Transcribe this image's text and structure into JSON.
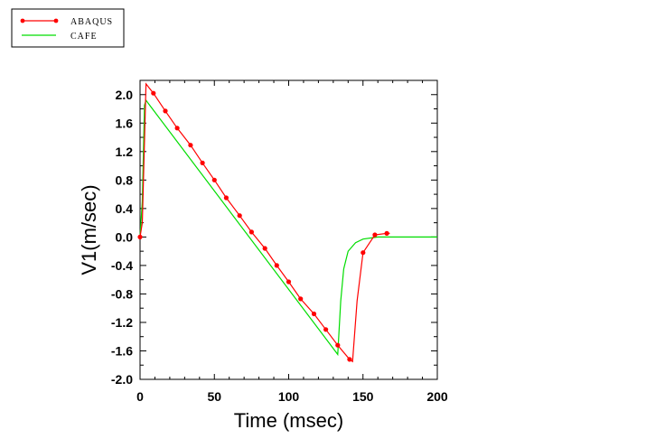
{
  "chart_data": {
    "type": "line",
    "xlabel": "Time (msec)",
    "ylabel": "V1(m/sec)",
    "xlim": [
      0,
      200
    ],
    "ylim": [
      -2.0,
      2.2
    ],
    "x_ticks": [
      0,
      50,
      100,
      150,
      200
    ],
    "x_tick_labels": [
      "0",
      "50",
      "100",
      "150",
      "200"
    ],
    "y_ticks": [
      -2.0,
      -1.6,
      -1.2,
      -0.8,
      -0.4,
      0.0,
      0.4,
      0.8,
      1.2,
      1.6,
      2.0
    ],
    "y_tick_labels": [
      "-2.0",
      "-1.6",
      "-1.2",
      "-0.8",
      "-0.4",
      "0.0",
      "0.4",
      "0.8",
      "1.2",
      "1.6",
      "2.0"
    ],
    "grid": false,
    "legend_position": "top-left",
    "series": [
      {
        "name": "ABAQUS",
        "color": "#ff0000",
        "marker": "circle",
        "x": [
          0,
          1.5,
          4,
          9,
          17,
          25,
          34,
          42,
          50,
          58,
          67,
          75,
          84,
          92,
          100,
          108,
          117,
          125,
          133,
          141,
          143,
          146,
          150,
          158,
          166,
          168
        ],
        "y": [
          0.0,
          0.2,
          2.15,
          2.02,
          1.77,
          1.53,
          1.29,
          1.04,
          0.8,
          0.55,
          0.3,
          0.07,
          -0.16,
          -0.4,
          -0.63,
          -0.87,
          -1.08,
          -1.3,
          -1.52,
          -1.72,
          -1.75,
          -0.9,
          -0.22,
          0.03,
          0.05,
          0.05
        ],
        "marker_x": [
          0,
          9,
          17,
          25,
          34,
          42,
          50,
          58,
          67,
          75,
          84,
          92,
          100,
          108,
          117,
          125,
          133,
          141,
          150,
          158,
          166
        ],
        "marker_y": [
          0.0,
          2.02,
          1.77,
          1.53,
          1.29,
          1.04,
          0.8,
          0.55,
          0.3,
          0.07,
          -0.16,
          -0.4,
          -0.63,
          -0.87,
          -1.08,
          -1.3,
          -1.52,
          -1.72,
          -0.22,
          0.03,
          0.05
        ]
      },
      {
        "name": "CAFE",
        "color": "#00dd00",
        "x": [
          0,
          1.5,
          3,
          4,
          133,
          135,
          137,
          140,
          145,
          150,
          160,
          170,
          200
        ],
        "y": [
          0.0,
          0.5,
          1.85,
          1.92,
          -1.65,
          -0.9,
          -0.45,
          -0.2,
          -0.08,
          -0.03,
          0.0,
          0.0,
          0.0
        ]
      }
    ]
  }
}
